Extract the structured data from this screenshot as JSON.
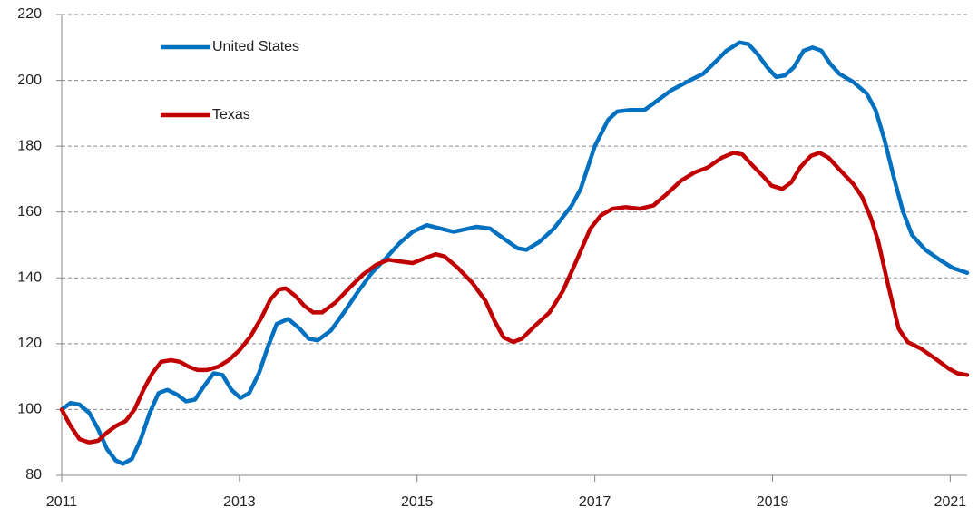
{
  "chart_data": {
    "type": "line",
    "xlim": [
      2011,
      2021.19
    ],
    "xticks": [
      2011,
      2013,
      2015,
      2017,
      2019,
      2021
    ],
    "ylim": [
      80,
      220
    ],
    "yticks": [
      80,
      100,
      120,
      140,
      160,
      180,
      200,
      220
    ],
    "grid": true,
    "legend": "upper left",
    "series": [
      {
        "name": "United States",
        "color": "#0070c0",
        "x": [
          2011.0,
          2011.1,
          2011.2,
          2011.31,
          2011.41,
          2011.51,
          2011.61,
          2011.69,
          2011.79,
          2011.89,
          2011.99,
          2012.09,
          2012.19,
          2012.3,
          2012.4,
          2012.5,
          2012.6,
          2012.71,
          2012.81,
          2012.91,
          2013.01,
          2013.11,
          2013.22,
          2013.32,
          2013.42,
          2013.55,
          2013.68,
          2013.78,
          2013.88,
          2014.03,
          2014.19,
          2014.34,
          2014.49,
          2014.65,
          2014.8,
          2014.95,
          2015.11,
          2015.41,
          2015.67,
          2015.82,
          2015.97,
          2016.13,
          2016.23,
          2016.38,
          2016.54,
          2016.74,
          2016.84,
          2017.0,
          2017.15,
          2017.25,
          2017.4,
          2017.56,
          2017.66,
          2017.86,
          2018.07,
          2018.22,
          2018.37,
          2018.48,
          2018.63,
          2018.73,
          2018.83,
          2018.94,
          2019.04,
          2019.14,
          2019.24,
          2019.35,
          2019.45,
          2019.55,
          2019.65,
          2019.75,
          2019.91,
          2020.06,
          2020.16,
          2020.26,
          2020.37,
          2020.47,
          2020.57,
          2020.72,
          2020.88,
          2021.03,
          2021.19
        ],
        "values": [
          100,
          102,
          101.5,
          99,
          94,
          88,
          84.5,
          83.5,
          85,
          91,
          99,
          105,
          106,
          104.5,
          102.5,
          103,
          107,
          111,
          110.5,
          106,
          103.5,
          105,
          111,
          119,
          126,
          127.5,
          124.5,
          121.5,
          121,
          124,
          130,
          136,
          141.5,
          146,
          150.5,
          154,
          156,
          154,
          155.5,
          155,
          152,
          149,
          148.5,
          151,
          155,
          162,
          167,
          180,
          188,
          190.5,
          191,
          191,
          193,
          197,
          200,
          202,
          206,
          209,
          211.5,
          211,
          208,
          204,
          201,
          201.5,
          204,
          209,
          210,
          209,
          205,
          202,
          199.5,
          196,
          191,
          182,
          170,
          160,
          153,
          148.5,
          145.5,
          143,
          141.5
        ]
      },
      {
        "name": "Texas",
        "color": "#c00000",
        "x": [
          2011.0,
          2011.1,
          2011.2,
          2011.31,
          2011.41,
          2011.51,
          2011.61,
          2011.72,
          2011.82,
          2011.92,
          2012.02,
          2012.12,
          2012.23,
          2012.33,
          2012.43,
          2012.53,
          2012.63,
          2012.76,
          2012.88,
          2013.0,
          2013.12,
          2013.25,
          2013.35,
          2013.45,
          2013.52,
          2013.63,
          2013.73,
          2013.83,
          2013.93,
          2014.08,
          2014.24,
          2014.39,
          2014.54,
          2014.68,
          2014.8,
          2014.95,
          2015.09,
          2015.21,
          2015.31,
          2015.46,
          2015.62,
          2015.77,
          2015.87,
          2015.97,
          2016.08,
          2016.18,
          2016.33,
          2016.49,
          2016.64,
          2016.79,
          2016.95,
          2017.07,
          2017.2,
          2017.35,
          2017.51,
          2017.66,
          2017.81,
          2017.97,
          2018.12,
          2018.27,
          2018.43,
          2018.56,
          2018.66,
          2018.78,
          2018.89,
          2018.99,
          2019.11,
          2019.21,
          2019.31,
          2019.43,
          2019.53,
          2019.63,
          2019.75,
          2019.91,
          2020.01,
          2020.11,
          2020.19,
          2020.3,
          2020.42,
          2020.52,
          2020.67,
          2020.83,
          2020.98,
          2021.08,
          2021.19
        ],
        "values": [
          100,
          95,
          91,
          90,
          90.5,
          93,
          95,
          96.5,
          100,
          106,
          111,
          114.5,
          115,
          114.5,
          113,
          112,
          112,
          113,
          115,
          118,
          122,
          128,
          133.5,
          136.5,
          136.8,
          134.5,
          131.5,
          129.5,
          129.5,
          132.5,
          137,
          141,
          144,
          145.5,
          145,
          144.5,
          146,
          147.2,
          146.5,
          143,
          138.5,
          133,
          127,
          122,
          120.5,
          121.5,
          125.5,
          129.5,
          136,
          145,
          155,
          159,
          161,
          161.5,
          161,
          162,
          165.5,
          169.5,
          172,
          173.5,
          176.5,
          178,
          177.5,
          174,
          171,
          168,
          167,
          169,
          173.5,
          177,
          178,
          176.5,
          173,
          168.5,
          164.5,
          158,
          151,
          138,
          124.5,
          120.5,
          118.5,
          115.5,
          112.5,
          111,
          110.5
        ]
      }
    ]
  }
}
